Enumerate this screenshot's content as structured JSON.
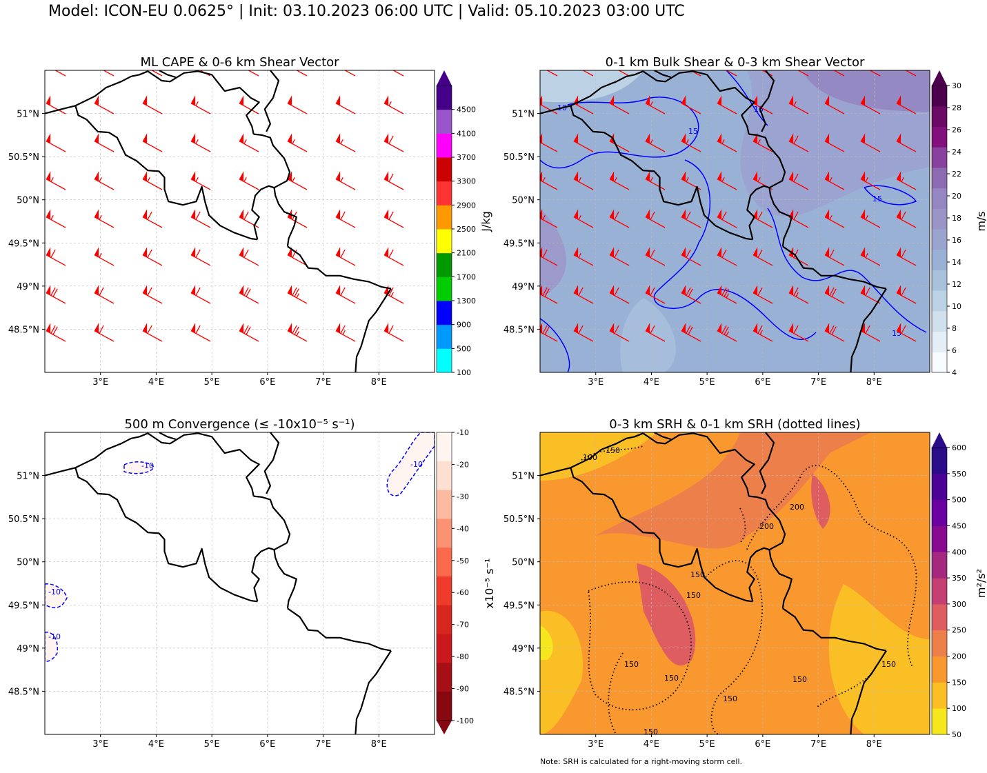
{
  "figure": {
    "suptitle": "Model: ICON-EU 0.0625° | Init: 03.10.2023 06:00 UTC | Valid: 05.10.2023 03:00 UTC",
    "note": "Note: SRH is calculated for a right-moving storm cell."
  },
  "colors": {
    "border": "#000000",
    "barb": "#ff0000",
    "contour_blue": "#0000ff",
    "grid": "#bbbbbb"
  },
  "chart_data": [
    {
      "type": "heatmap",
      "title": "ML CAPE & 0-6 km Shear Vector",
      "x_ticks": [
        "3°E",
        "4°E",
        "5°E",
        "6°E",
        "7°E",
        "8°E"
      ],
      "y_ticks": [
        "51°N",
        "50.5°N",
        "50°N",
        "49.5°N",
        "49°N",
        "48.5°N"
      ],
      "xlim": [
        2.0,
        9.0
      ],
      "ylim": [
        48.0,
        51.5
      ],
      "colorbar": {
        "label": "J/kg",
        "ticks": [
          "100",
          "500",
          "900",
          "1300",
          "1700",
          "2100",
          "2500",
          "2900",
          "3300",
          "3700",
          "4100",
          "4500"
        ],
        "colors": [
          "#00ffff",
          "#0099ff",
          "#0000ff",
          "#00cc00",
          "#009900",
          "#ffff00",
          "#ff9900",
          "#ff3333",
          "#cc0000",
          "#ff00ff",
          "#9955cc",
          "#440088"
        ],
        "extend": "max"
      },
      "field": "none above 100 J/kg",
      "overlay": "0-6 km shear wind barbs (red), flow from west-northwest",
      "barb_speeds_kt": [
        [
          50,
          50,
          50,
          50,
          50,
          50,
          50,
          55
        ],
        [
          50,
          50,
          50,
          55,
          50,
          50,
          50,
          55
        ],
        [
          50,
          50,
          50,
          55,
          55,
          55,
          55,
          60
        ],
        [
          55,
          55,
          55,
          55,
          55,
          55,
          55,
          60
        ],
        [
          55,
          55,
          60,
          60,
          60,
          60,
          60,
          60
        ],
        [
          60,
          55,
          60,
          60,
          60,
          60,
          60,
          60
        ],
        [
          70,
          60,
          60,
          60,
          70,
          75,
          60,
          65
        ],
        [
          70,
          60,
          60,
          60,
          70,
          75,
          65,
          60
        ]
      ]
    },
    {
      "type": "heatmap",
      "title": "0-1 km Bulk Shear & 0-3 km Shear Vector",
      "x_ticks": [
        "3°E",
        "4°E",
        "5°E",
        "6°E",
        "7°E",
        "8°E"
      ],
      "y_ticks": [
        "51°N",
        "50.5°N",
        "50°N",
        "49.5°N",
        "49°N",
        "48.5°N"
      ],
      "xlim": [
        2.0,
        9.0
      ],
      "ylim": [
        48.0,
        51.5
      ],
      "colorbar": {
        "label": "m/s",
        "ticks": [
          "4",
          "6",
          "8",
          "10",
          "12",
          "14",
          "16",
          "18",
          "20",
          "22",
          "24",
          "26",
          "28",
          "30"
        ],
        "colors": [
          "#f7fbff",
          "#e4eef6",
          "#d0e0ec",
          "#bcd1e4",
          "#a9c2dc",
          "#99b1d4",
          "#9ba3cf",
          "#9b95c7",
          "#9486c0",
          "#8c6bb1",
          "#88419d",
          "#810f7c",
          "#6a0a65",
          "#4d004b"
        ],
        "extend": "max"
      },
      "contours": {
        "levels": [
          "10",
          "15"
        ],
        "color": "blue"
      },
      "overlay": "0-3 km shear wind barbs (red), flow from west-northwest"
    },
    {
      "type": "heatmap",
      "title": "500 m Convergence (≤ -10x10⁻⁵ s⁻¹)",
      "x_ticks": [
        "3°E",
        "4°E",
        "5°E",
        "6°E",
        "7°E",
        "8°E"
      ],
      "y_ticks": [
        "51°N",
        "50.5°N",
        "50°N",
        "49.5°N",
        "49°N",
        "48.5°N"
      ],
      "xlim": [
        2.0,
        9.0
      ],
      "ylim": [
        48.0,
        51.5
      ],
      "colorbar": {
        "label": "x10⁻⁵ s⁻¹",
        "ticks": [
          "-10",
          "-20",
          "-30",
          "-40",
          "-50",
          "-60",
          "-70",
          "-80",
          "-90",
          "-100"
        ],
        "colors": [
          "#fff5f0",
          "#fee0d2",
          "#fcbba1",
          "#fc9272",
          "#fb6a4a",
          "#ef3b2c",
          "#d7261e",
          "#cb181d",
          "#a50f15",
          "#860811"
        ],
        "extend": "min"
      },
      "contours": {
        "levels": [
          "-10"
        ],
        "color": "blue",
        "style": "dashed"
      }
    },
    {
      "type": "heatmap",
      "title": "0-3 km SRH & 0-1 km SRH (dotted lines)",
      "x_ticks": [
        "3°E",
        "4°E",
        "5°E",
        "6°E",
        "7°E",
        "8°E"
      ],
      "y_ticks": [
        "51°N",
        "50.5°N",
        "50°N",
        "49.5°N",
        "49°N",
        "48.5°N"
      ],
      "xlim": [
        2.0,
        9.0
      ],
      "ylim": [
        48.0,
        51.5
      ],
      "colorbar": {
        "label": "m²/s²",
        "ticks": [
          "50",
          "100",
          "150",
          "200",
          "250",
          "300",
          "350",
          "400",
          "450",
          "500",
          "550",
          "600"
        ],
        "colors": [
          "#f5e61e",
          "#fbbf26",
          "#f9982f",
          "#ed7f4a",
          "#dd5d61",
          "#c43f72",
          "#a5287f",
          "#870a8f",
          "#6a00a0",
          "#4b0295",
          "#2a0b88"
        ],
        "extend": "max"
      },
      "contours": {
        "levels": [
          "100",
          "150",
          "200"
        ],
        "color": "black",
        "style": "dotted"
      }
    }
  ]
}
